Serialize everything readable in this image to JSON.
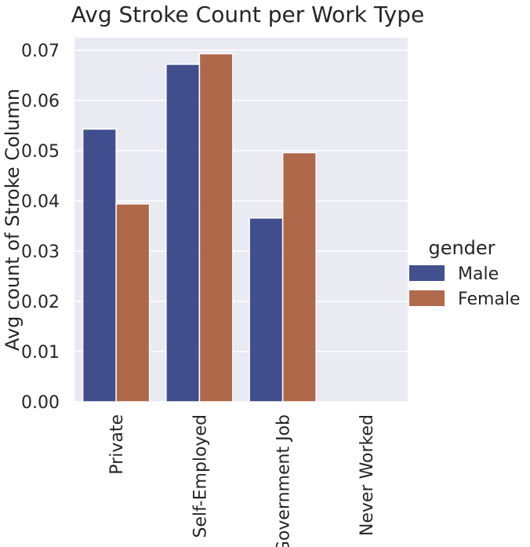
{
  "chart_data": {
    "type": "bar",
    "title": "Avg Stroke Count per Work Type",
    "xlabel": "",
    "ylabel": "Avg count of Stroke Column",
    "categories": [
      "Private",
      "Self-Employed",
      "Government Job",
      "Never Worked"
    ],
    "series": [
      {
        "name": "Male",
        "values": [
          0.0543,
          0.0672,
          0.0366,
          0.0
        ],
        "color": "#2d3d82"
      },
      {
        "name": "Female",
        "values": [
          0.0394,
          0.0693,
          0.0496,
          0.0
        ],
        "color": "#a85a37"
      }
    ],
    "ylim": [
      0,
      0.0725
    ],
    "yticks": [
      "0.00",
      "0.01",
      "0.02",
      "0.03",
      "0.04",
      "0.05",
      "0.06",
      "0.07"
    ],
    "grid": true,
    "legend": {
      "title": "gender",
      "placement": "right"
    }
  }
}
